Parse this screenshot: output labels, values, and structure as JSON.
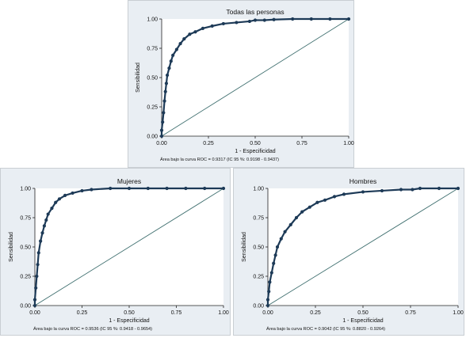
{
  "chart_data": [
    {
      "type": "line",
      "title": "Todas las personas",
      "xlabel": "1 - Especificidad",
      "ylabel": "Sensibilidad",
      "xlim": [
        0,
        1
      ],
      "ylim": [
        0,
        1
      ],
      "xticks": [
        "0.00",
        "0.25",
        "0.50",
        "0.75",
        "1.00"
      ],
      "yticks": [
        "0.00",
        "0.25",
        "0.50",
        "0.75",
        "1.00"
      ],
      "note": "Área bajo la curva ROC = 0.9317 (IC 95 %: 0.9198 - 0.9437)",
      "series": [
        {
          "name": "",
          "x": [
            0,
            0,
            0.005,
            0.01,
            0.015,
            0.02,
            0.025,
            0.03,
            0.04,
            0.05,
            0.06,
            0.08,
            0.1,
            0.12,
            0.15,
            0.18,
            0.22,
            0.27,
            0.33,
            0.4,
            0.47,
            0.5,
            0.55,
            0.6,
            0.7,
            0.8,
            0.9,
            1.0
          ],
          "y": [
            0,
            0.05,
            0.12,
            0.2,
            0.3,
            0.38,
            0.45,
            0.52,
            0.58,
            0.64,
            0.69,
            0.74,
            0.79,
            0.83,
            0.87,
            0.89,
            0.92,
            0.94,
            0.96,
            0.97,
            0.98,
            0.99,
            0.99,
            0.995,
            1.0,
            1.0,
            1.0,
            1.0
          ]
        },
        {
          "name": "",
          "x": [
            0,
            1
          ],
          "y": [
            0,
            1
          ]
        }
      ]
    },
    {
      "type": "line",
      "title": "Mujeres",
      "xlabel": "1 - Especificidad",
      "ylabel": "Sensibilidad",
      "xlim": [
        0,
        1
      ],
      "ylim": [
        0,
        1
      ],
      "xticks": [
        "0.00",
        "0.25",
        "0.50",
        "0.75",
        "1.00"
      ],
      "yticks": [
        "0.00",
        "0.25",
        "0.50",
        "0.75",
        "1.00"
      ],
      "note": "Área bajo la curva ROC = 0.9536 (IC 95 %: 0.9418 - 0.9654)",
      "series": [
        {
          "name": "",
          "x": [
            0,
            0,
            0.005,
            0.01,
            0.015,
            0.02,
            0.03,
            0.04,
            0.05,
            0.06,
            0.07,
            0.09,
            0.11,
            0.13,
            0.16,
            0.2,
            0.25,
            0.3,
            0.4,
            0.5,
            0.6,
            0.7,
            0.8,
            0.9,
            1.0
          ],
          "y": [
            0,
            0.05,
            0.15,
            0.25,
            0.35,
            0.45,
            0.55,
            0.62,
            0.68,
            0.73,
            0.78,
            0.83,
            0.88,
            0.91,
            0.94,
            0.96,
            0.98,
            0.99,
            1.0,
            1.0,
            1.0,
            1.0,
            1.0,
            1.0,
            1.0
          ]
        },
        {
          "name": "",
          "x": [
            0,
            1
          ],
          "y": [
            0,
            1
          ]
        }
      ]
    },
    {
      "type": "line",
      "title": "Hombres",
      "xlabel": "1 - Especificidad",
      "ylabel": "Sensibilidad",
      "xlim": [
        0,
        1
      ],
      "ylim": [
        0,
        1
      ],
      "xticks": [
        "0.00",
        "0.25",
        "0.50",
        "0.75",
        "1.00"
      ],
      "yticks": [
        "0.00",
        "0.25",
        "0.50",
        "0.75",
        "1.00"
      ],
      "note": "Área bajo la curva ROC = 0.9042 (IC 95 %: 0.8820 - 0.9264)",
      "series": [
        {
          "name": "",
          "x": [
            0,
            0,
            0.005,
            0.01,
            0.02,
            0.03,
            0.04,
            0.05,
            0.07,
            0.09,
            0.12,
            0.15,
            0.18,
            0.22,
            0.26,
            0.3,
            0.35,
            0.4,
            0.5,
            0.6,
            0.7,
            0.76,
            0.8,
            0.9,
            1.0
          ],
          "y": [
            0,
            0.05,
            0.12,
            0.2,
            0.28,
            0.36,
            0.43,
            0.5,
            0.57,
            0.63,
            0.69,
            0.75,
            0.8,
            0.84,
            0.88,
            0.9,
            0.93,
            0.95,
            0.97,
            0.98,
            0.99,
            0.99,
            1.0,
            1.0,
            1.0
          ]
        },
        {
          "name": "",
          "x": [
            0,
            1
          ],
          "y": [
            0,
            1
          ]
        }
      ]
    }
  ]
}
